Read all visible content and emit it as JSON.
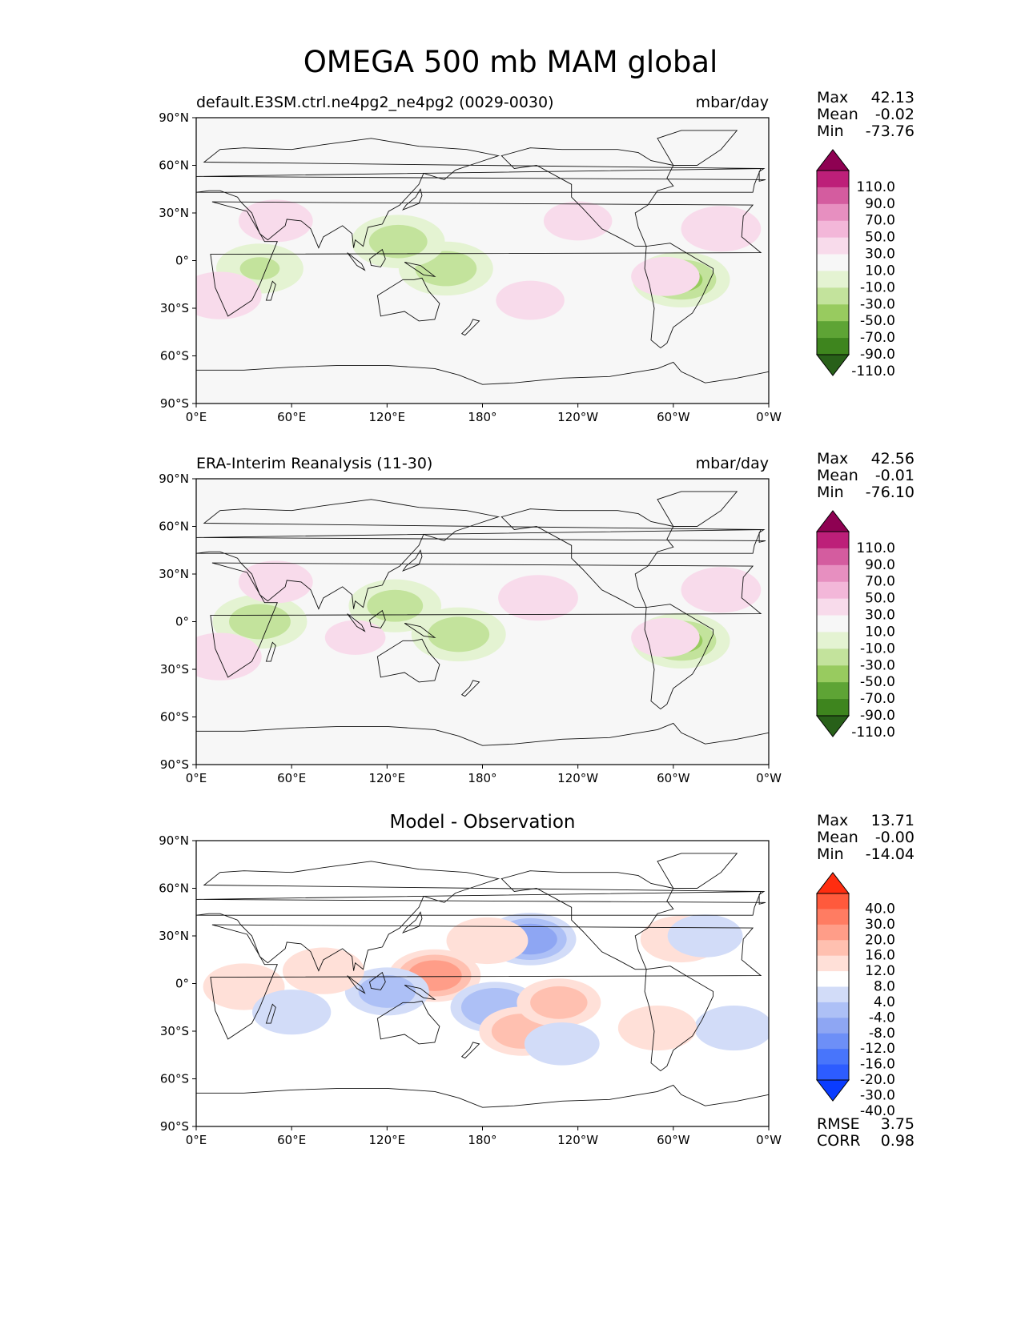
{
  "figure": {
    "title": "OMEGA 500 mb MAM global"
  },
  "palettes": {
    "omega": [
      "#286019",
      "#3e851e",
      "#5ea435",
      "#98cb5f",
      "#c3e39c",
      "#e4f3d2",
      "#f7f7f7",
      "#f8dbeb",
      "#f3b7d9",
      "#e78fc0",
      "#d45c9f",
      "#bd1f79",
      "#8e0152"
    ],
    "diff": [
      "#0a3cff",
      "#2d5cff",
      "#4875fb",
      "#6d8ff7",
      "#8ea6f3",
      "#adc0f6",
      "#d2dcf8",
      "#ffffff",
      "#ffe0d8",
      "#ffc0b0",
      "#ff9d88",
      "#ff7c62",
      "#ff5a3c",
      "#ff2d10"
    ]
  },
  "panels": [
    {
      "id": "model",
      "title_left": "default.E3SM.ctrl.ne4pg2_ne4pg2 (0029-0030)",
      "title_center": "",
      "units": "mbar/day",
      "stats": [
        {
          "label": "Max",
          "value": "42.13"
        },
        {
          "label": "Mean",
          "value": "-0.02"
        },
        {
          "label": "Min",
          "value": "-73.76"
        }
      ],
      "colorbar": {
        "palette": "omega",
        "levels": [
          "110.0",
          "90.0",
          "70.0",
          "50.0",
          "30.0",
          "10.0",
          "-10.0",
          "-30.0",
          "-50.0",
          "-70.0",
          "-90.0",
          "-110.0"
        ]
      },
      "extra_stats": []
    },
    {
      "id": "obs",
      "title_left": "ERA-Interim Reanalysis (11-30)",
      "title_center": "",
      "units": "mbar/day",
      "stats": [
        {
          "label": "Max",
          "value": "42.56"
        },
        {
          "label": "Mean",
          "value": "-0.01"
        },
        {
          "label": "Min",
          "value": "-76.10"
        }
      ],
      "colorbar": {
        "palette": "omega",
        "levels": [
          "110.0",
          "90.0",
          "70.0",
          "50.0",
          "30.0",
          "10.0",
          "-10.0",
          "-30.0",
          "-50.0",
          "-70.0",
          "-90.0",
          "-110.0"
        ]
      },
      "extra_stats": []
    },
    {
      "id": "diff",
      "title_left": "",
      "title_center": "Model - Observation",
      "units": "",
      "stats": [
        {
          "label": "Max",
          "value": "13.71"
        },
        {
          "label": "Mean",
          "value": "-0.00"
        },
        {
          "label": "Min",
          "value": "-14.04"
        }
      ],
      "colorbar": {
        "palette": "diff",
        "levels": [
          "40.0",
          "30.0",
          "20.0",
          "16.0",
          "12.0",
          "8.0",
          "4.0",
          "-4.0",
          "-8.0",
          "-12.0",
          "-16.0",
          "-20.0",
          "-30.0",
          "-40.0"
        ]
      },
      "extra_stats": [
        {
          "label": "RMSE",
          "value": "3.75"
        },
        {
          "label": "CORR",
          "value": "0.98"
        }
      ]
    }
  ],
  "chart_data": [
    {
      "type": "heatmap",
      "title": "default.E3SM.ctrl.ne4pg2_ne4pg2 (0029-0030)",
      "units": "mbar/day",
      "projection": "plate-carree",
      "xlim": [
        0,
        360
      ],
      "ylim": [
        -90,
        90
      ],
      "x_ticks": [
        "0°E",
        "60°E",
        "120°E",
        "180°",
        "120°W",
        "60°W",
        "0°W"
      ],
      "y_ticks": [
        "90°N",
        "60°N",
        "30°N",
        "0°",
        "30°S",
        "60°S",
        "90°S"
      ],
      "stats": {
        "max": 42.13,
        "mean": -0.02,
        "min": -73.76
      },
      "features": [
        {
          "lon": 157,
          "lat": -5,
          "value": -45
        },
        {
          "lon": 127,
          "lat": 12,
          "value": -42
        },
        {
          "lon": 40,
          "lat": -5,
          "value": -30
        },
        {
          "lon": 305,
          "lat": -12,
          "value": -55
        },
        {
          "lon": 210,
          "lat": -25,
          "value": 15
        },
        {
          "lon": 15,
          "lat": -22,
          "value": 25
        },
        {
          "lon": 330,
          "lat": 20,
          "value": 22
        },
        {
          "lon": 240,
          "lat": 25,
          "value": 15
        },
        {
          "lon": 295,
          "lat": -10,
          "value": 15
        },
        {
          "lon": 50,
          "lat": 25,
          "value": 18
        }
      ]
    },
    {
      "type": "heatmap",
      "title": "ERA-Interim Reanalysis (11-30)",
      "units": "mbar/day",
      "projection": "plate-carree",
      "xlim": [
        0,
        360
      ],
      "ylim": [
        -90,
        90
      ],
      "x_ticks": [
        "0°E",
        "60°E",
        "120°E",
        "180°",
        "120°W",
        "60°W",
        "0°W"
      ],
      "y_ticks": [
        "90°N",
        "60°N",
        "30°N",
        "0°",
        "30°S",
        "60°S",
        "90°S"
      ],
      "stats": {
        "max": 42.56,
        "mean": -0.01,
        "min": -76.1
      },
      "features": [
        {
          "lon": 165,
          "lat": -8,
          "value": -45
        },
        {
          "lon": 125,
          "lat": 10,
          "value": -40
        },
        {
          "lon": 40,
          "lat": 0,
          "value": -45
        },
        {
          "lon": 305,
          "lat": -12,
          "value": -55
        },
        {
          "lon": 215,
          "lat": 15,
          "value": 22
        },
        {
          "lon": 15,
          "lat": -22,
          "value": 25
        },
        {
          "lon": 330,
          "lat": 20,
          "value": 22
        },
        {
          "lon": 100,
          "lat": -10,
          "value": 12
        },
        {
          "lon": 295,
          "lat": -10,
          "value": 15
        },
        {
          "lon": 50,
          "lat": 25,
          "value": 18
        }
      ]
    },
    {
      "type": "heatmap",
      "title": "Model - Observation",
      "units": "mbar/day",
      "projection": "plate-carree",
      "xlim": [
        0,
        360
      ],
      "ylim": [
        -90,
        90
      ],
      "x_ticks": [
        "0°E",
        "60°E",
        "120°E",
        "180°",
        "120°W",
        "60°W",
        "0°W"
      ],
      "y_ticks": [
        "90°N",
        "60°N",
        "30°N",
        "0°",
        "30°S",
        "60°S",
        "90°S"
      ],
      "stats": {
        "max": 13.71,
        "mean": -0.0,
        "min": -14.04,
        "rmse": 3.75,
        "corr": 0.98
      },
      "features": [
        {
          "lon": 150,
          "lat": 5,
          "value": 13
        },
        {
          "lon": 210,
          "lat": 28,
          "value": -13
        },
        {
          "lon": 188,
          "lat": -15,
          "value": -11
        },
        {
          "lon": 120,
          "lat": -5,
          "value": -8
        },
        {
          "lon": 205,
          "lat": -30,
          "value": 9
        },
        {
          "lon": 228,
          "lat": -12,
          "value": 8
        },
        {
          "lon": 183,
          "lat": 27,
          "value": 7
        },
        {
          "lon": 305,
          "lat": 28,
          "value": 7
        },
        {
          "lon": 80,
          "lat": 8,
          "value": 7
        },
        {
          "lon": 30,
          "lat": -2,
          "value": 7
        },
        {
          "lon": 60,
          "lat": -18,
          "value": -6
        },
        {
          "lon": 338,
          "lat": -28,
          "value": -6
        },
        {
          "lon": 320,
          "lat": 30,
          "value": -5
        },
        {
          "lon": 290,
          "lat": -28,
          "value": 6
        },
        {
          "lon": 230,
          "lat": -38,
          "value": -5
        }
      ]
    }
  ]
}
